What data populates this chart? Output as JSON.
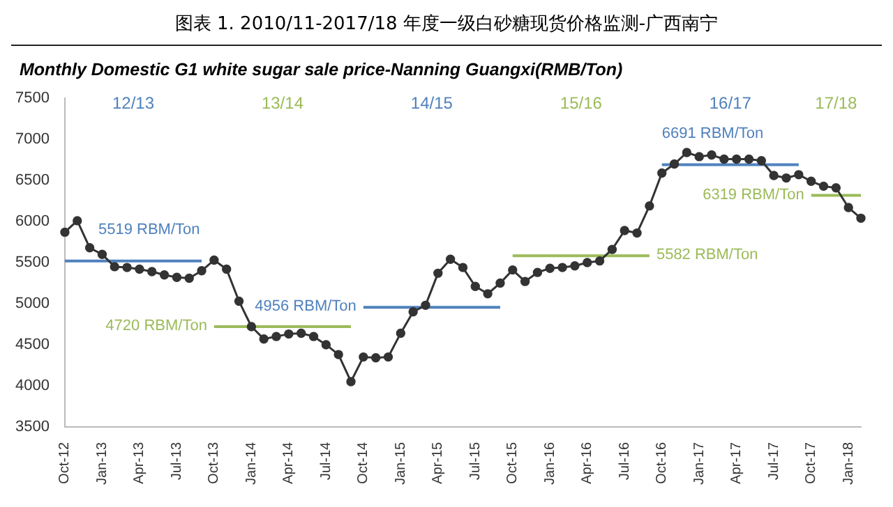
{
  "chart_data": {
    "type": "line",
    "title": "图表 1.   2010/11-2017/18 年度一级白砂糖现货价格监测-广西南宁",
    "subtitle": "Monthly Domestic G1 white sugar sale price-Nanning Guangxi(RMB/Ton)",
    "categories": [
      "Oct-12",
      null,
      null,
      "Jan-13",
      null,
      null,
      "Apr-13",
      null,
      null,
      "Jul-13",
      null,
      null,
      "Oct-13",
      null,
      null,
      "Jan-14",
      null,
      null,
      "Apr-14",
      null,
      null,
      "Jul-14",
      null,
      null,
      "Oct-14",
      null,
      null,
      "Jan-15",
      null,
      null,
      "Apr-15",
      null,
      null,
      "Jul-15",
      null,
      null,
      "Oct-15",
      null,
      null,
      "Jan-16",
      null,
      null,
      "Apr-16",
      null,
      null,
      "Jul-16",
      null,
      null,
      "Oct-16",
      null,
      null,
      "Jan-17",
      null,
      null,
      "Apr-17",
      null,
      null,
      "Jul-17",
      null,
      null,
      "Oct-17",
      null,
      null,
      "Jan-18",
      null
    ],
    "series": [
      {
        "color": "#333333",
        "values": [
          5870,
          6010,
          5680,
          5600,
          5450,
          5440,
          5420,
          5390,
          5350,
          5320,
          5310,
          5400,
          5530,
          5420,
          5030,
          4720,
          4570,
          4600,
          4630,
          4640,
          4600,
          4500,
          4380,
          4050,
          4350,
          4340,
          4350,
          4640,
          4900,
          4980,
          5370,
          5540,
          5440,
          5210,
          5120,
          5250,
          5410,
          5270,
          5380,
          5430,
          5440,
          5460,
          5500,
          5520,
          5660,
          5890,
          5860,
          6190,
          6590,
          6700,
          6840,
          6790,
          6810,
          6760,
          6760,
          6760,
          6740,
          6560,
          6530,
          6570,
          6490,
          6430,
          6410,
          6170,
          6040
        ]
      },
      {
        "name": "5519 RBM/Ton",
        "color": "#4f81bd",
        "marker": "none",
        "values": [
          5519,
          5519,
          5519,
          5519,
          5519,
          5519,
          5519,
          5519,
          5519,
          5519,
          5519,
          5519,
          null,
          null,
          null,
          null,
          null,
          null,
          null,
          null,
          null,
          null,
          null,
          null,
          null,
          null,
          null,
          null,
          null,
          null,
          null,
          null,
          null,
          null,
          null,
          null,
          null,
          null,
          null,
          null,
          null,
          null,
          null,
          null,
          null,
          null,
          null,
          null,
          null,
          null,
          null,
          null,
          null,
          null,
          null,
          null,
          null,
          null,
          null,
          null,
          null,
          null,
          null,
          null,
          null
        ]
      },
      {
        "name": "4720 RBM/Ton",
        "color": "#9bbb59",
        "marker": "none",
        "values": [
          null,
          null,
          null,
          null,
          null,
          null,
          null,
          null,
          null,
          null,
          null,
          null,
          4720,
          4720,
          4720,
          4720,
          4720,
          4720,
          4720,
          4720,
          4720,
          4720,
          4720,
          4720,
          null,
          null,
          null,
          null,
          null,
          null,
          null,
          null,
          null,
          null,
          null,
          null,
          null,
          null,
          null,
          null,
          null,
          null,
          null,
          null,
          null,
          null,
          null,
          null,
          null,
          null,
          null,
          null,
          null,
          null,
          null,
          null,
          null,
          null,
          null,
          null,
          null,
          null,
          null,
          null,
          null
        ]
      },
      {
        "name": "4956 RBM/Ton",
        "color": "#4f81bd",
        "marker": "none",
        "values": [
          null,
          null,
          null,
          null,
          null,
          null,
          null,
          null,
          null,
          null,
          null,
          null,
          null,
          null,
          null,
          null,
          null,
          null,
          null,
          null,
          null,
          null,
          null,
          null,
          4956,
          4956,
          4956,
          4956,
          4956,
          4956,
          4956,
          4956,
          4956,
          4956,
          4956,
          4956,
          null,
          null,
          null,
          null,
          null,
          null,
          null,
          null,
          null,
          null,
          null,
          null,
          null,
          null,
          null,
          null,
          null,
          null,
          null,
          null,
          null,
          null,
          null,
          null,
          null,
          null,
          null,
          null,
          null
        ]
      },
      {
        "name": "5582 RBM/Ton",
        "color": "#9bbb59",
        "marker": "none",
        "values": [
          null,
          null,
          null,
          null,
          null,
          null,
          null,
          null,
          null,
          null,
          null,
          null,
          null,
          null,
          null,
          null,
          null,
          null,
          null,
          null,
          null,
          null,
          null,
          null,
          null,
          null,
          null,
          null,
          null,
          null,
          null,
          null,
          null,
          null,
          null,
          null,
          5582,
          5582,
          5582,
          5582,
          5582,
          5582,
          5582,
          5582,
          5582,
          5582,
          5582,
          5582,
          null,
          null,
          null,
          null,
          null,
          null,
          null,
          null,
          null,
          null,
          null,
          null,
          null,
          null,
          null,
          null,
          null
        ]
      },
      {
        "name": "6691 RBM/Ton",
        "color": "#4f81bd",
        "marker": "none",
        "values": [
          null,
          null,
          null,
          null,
          null,
          null,
          null,
          null,
          null,
          null,
          null,
          null,
          null,
          null,
          null,
          null,
          null,
          null,
          null,
          null,
          null,
          null,
          null,
          null,
          null,
          null,
          null,
          null,
          null,
          null,
          null,
          null,
          null,
          null,
          null,
          null,
          null,
          null,
          null,
          null,
          null,
          null,
          null,
          null,
          null,
          null,
          null,
          null,
          6691,
          6691,
          6691,
          6691,
          6691,
          6691,
          6691,
          6691,
          6691,
          6691,
          6691,
          6691,
          null,
          null,
          null,
          null,
          null
        ]
      },
      {
        "name": "6319 RBM/Ton",
        "color": "#9bbb59",
        "marker": "none",
        "values": [
          null,
          null,
          null,
          null,
          null,
          null,
          null,
          null,
          null,
          null,
          null,
          null,
          null,
          null,
          null,
          null,
          null,
          null,
          null,
          null,
          null,
          null,
          null,
          null,
          null,
          null,
          null,
          null,
          null,
          null,
          null,
          null,
          null,
          null,
          null,
          null,
          null,
          null,
          null,
          null,
          null,
          null,
          null,
          null,
          null,
          null,
          null,
          null,
          null,
          null,
          null,
          null,
          null,
          null,
          null,
          null,
          null,
          null,
          null,
          null,
          6319,
          6319,
          6319,
          6319,
          6319
        ]
      }
    ],
    "annotations": [
      "12/13",
      "13/14",
      "14/15",
      "15/16",
      "16/17",
      "17/18"
    ],
    "ylim": [
      3500,
      7500
    ],
    "yticks": [
      3500,
      4000,
      4500,
      5000,
      5500,
      6000,
      6500,
      7000,
      7500
    ],
    "marker": "circle",
    "line_style": "solid",
    "grid": false,
    "legend": false
  }
}
